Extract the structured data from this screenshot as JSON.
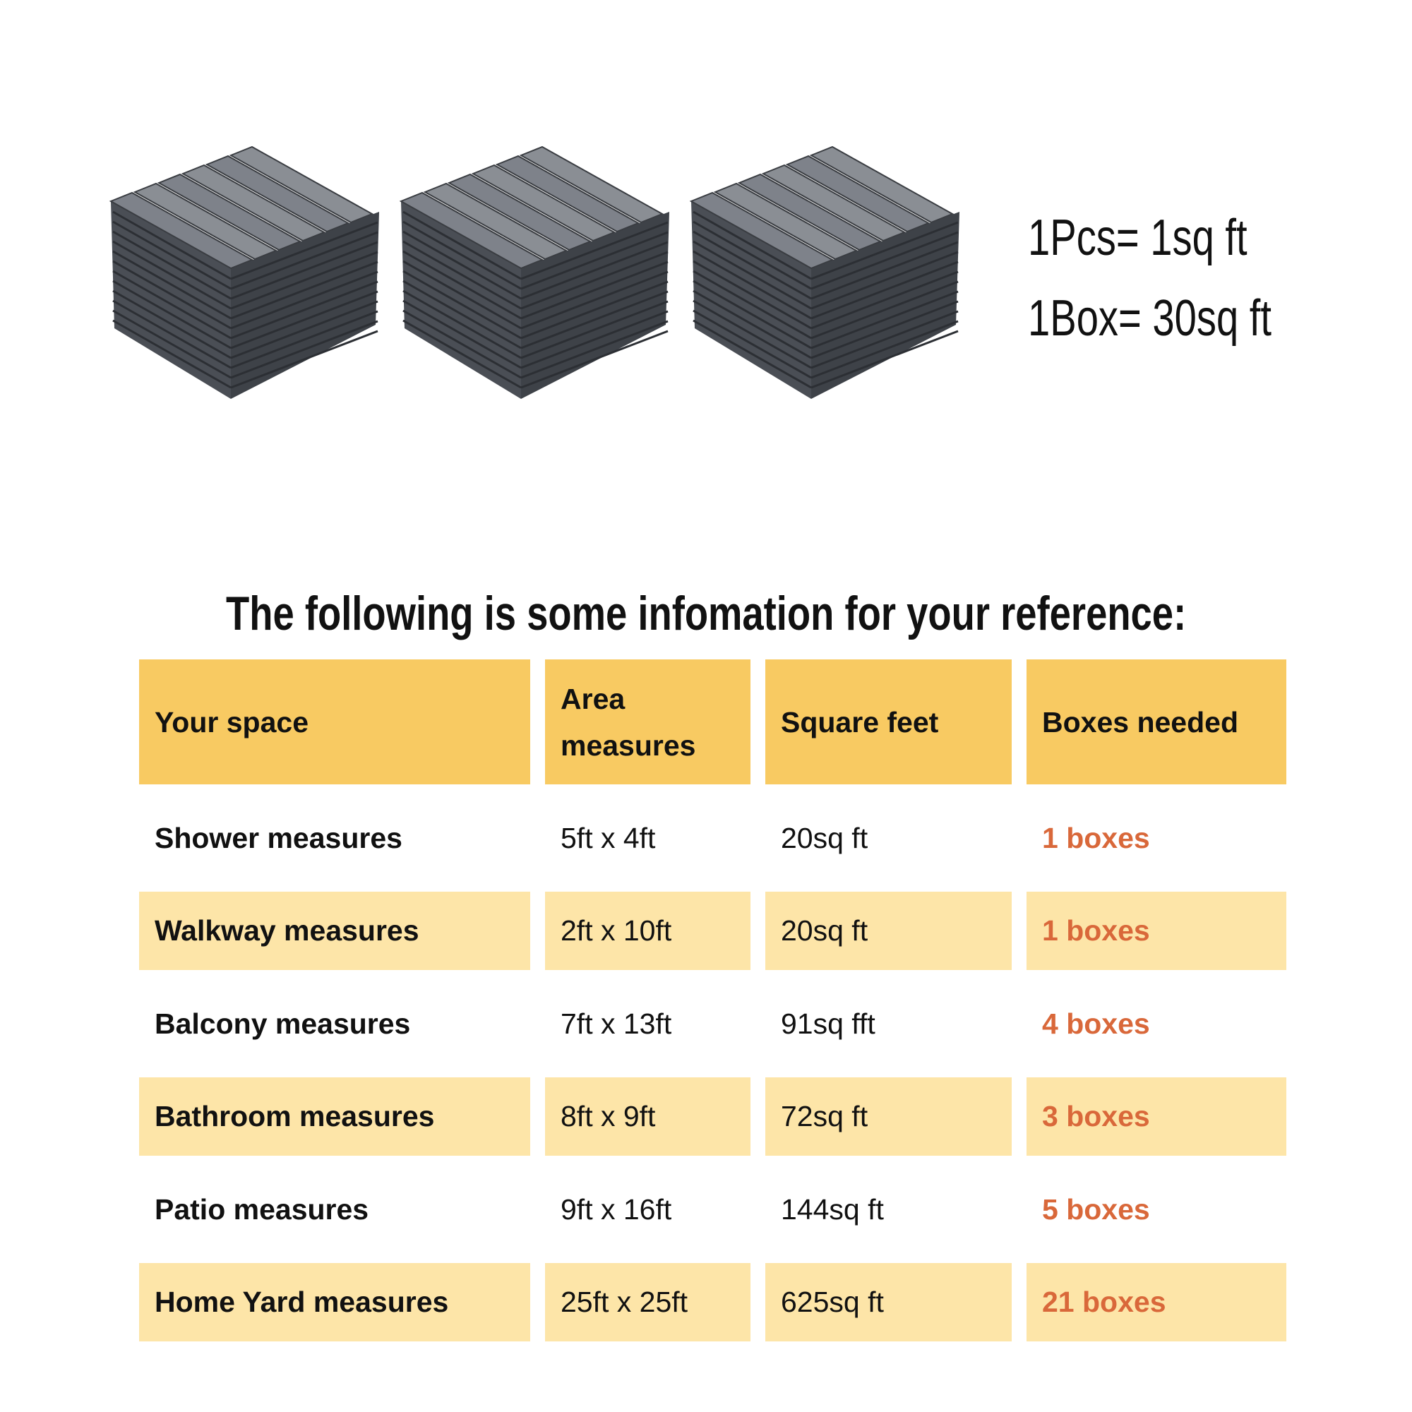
{
  "specs": {
    "per_piece": "1Pcs= 1sq ft",
    "per_box": "1Box= 30sq ft"
  },
  "title": "The following is some infomation for your reference:",
  "colors": {
    "header": "#F8CA62",
    "alt_row": "#FDE5A8",
    "boxes": "#D9683A"
  },
  "table": {
    "headers": [
      "Your space",
      "Area measures",
      "Square feet",
      "Boxes needed"
    ],
    "rows": [
      [
        "Shower measures",
        "5ft x 4ft",
        "20sq ft",
        "1 boxes"
      ],
      [
        "Walkway measures",
        "2ft x 10ft",
        "20sq ft",
        "1 boxes"
      ],
      [
        "Balcony measures",
        "7ft x 13ft",
        "91sq fft",
        "4 boxes"
      ],
      [
        "Bathroom measures",
        "8ft x 9ft",
        "72sq ft",
        "3 boxes"
      ],
      [
        "Patio measures",
        "9ft x 16ft",
        "144sq ft",
        "5 boxes"
      ],
      [
        "Home Yard measures",
        "25ft x 25ft",
        "625sq ft",
        "21 boxes"
      ]
    ]
  }
}
